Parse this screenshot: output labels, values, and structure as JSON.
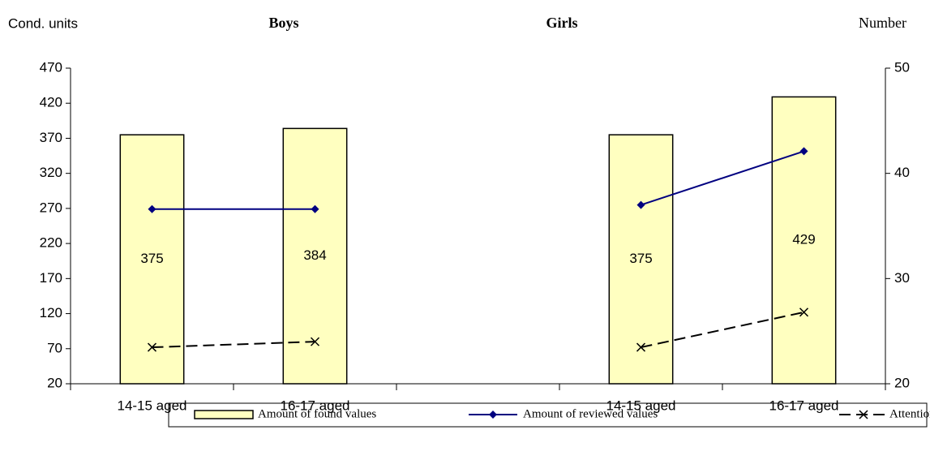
{
  "chart_data": {
    "type": "bar",
    "group_labels": [
      "Boys",
      "Girls"
    ],
    "ylabel": "Cond. units",
    "y2label": "Number",
    "categories": [
      "14-15 aged",
      "16-17 aged",
      null,
      "14-15 aged",
      "16-17 aged"
    ],
    "ylim": [
      20,
      470
    ],
    "yticks": [
      20,
      70,
      120,
      170,
      220,
      270,
      320,
      370,
      420,
      470
    ],
    "y2lim": [
      20,
      50
    ],
    "y2ticks": [
      20,
      30,
      40,
      50
    ],
    "legend": "bottom",
    "series": [
      {
        "name": "Amount of found values",
        "type": "bar",
        "color": "#ffffc0",
        "values": [
          375,
          384,
          null,
          375,
          429
        ]
      },
      {
        "name": "Amount of reviewed values",
        "type": "line",
        "axis": "y2",
        "color": "#000080",
        "marker": "diamond",
        "values": [
          36.6,
          36.6,
          null,
          37,
          42.1
        ]
      },
      {
        "name": "Attention index",
        "type": "line",
        "color": "#000000",
        "marker": "x",
        "dashed": true,
        "values": [
          72,
          80,
          null,
          72,
          122
        ]
      }
    ]
  }
}
